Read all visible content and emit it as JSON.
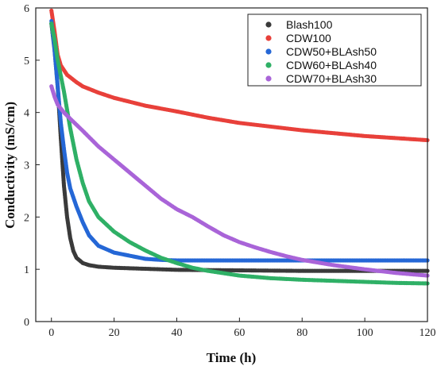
{
  "chart_data": {
    "type": "scatter",
    "title": "",
    "xlabel": "Time (h)",
    "ylabel": "Conductivity (mS/cm)",
    "xlim": [
      -5,
      120
    ],
    "ylim": [
      0,
      6
    ],
    "xticks": [
      0,
      20,
      40,
      60,
      80,
      100,
      120
    ],
    "yticks": [
      0,
      1,
      2,
      3,
      4,
      5,
      6
    ],
    "grid": false,
    "legend_position": "top-right",
    "series": [
      {
        "name": "Blash100",
        "color": "#3a3a3a",
        "points": [
          [
            0,
            5.7
          ],
          [
            1,
            5.2
          ],
          [
            2,
            4.5
          ],
          [
            3,
            3.5
          ],
          [
            4,
            2.6
          ],
          [
            5,
            2.0
          ],
          [
            6,
            1.6
          ],
          [
            7,
            1.35
          ],
          [
            8,
            1.22
          ],
          [
            10,
            1.12
          ],
          [
            12,
            1.08
          ],
          [
            15,
            1.05
          ],
          [
            20,
            1.03
          ],
          [
            30,
            1.01
          ],
          [
            40,
            0.99
          ],
          [
            60,
            0.98
          ],
          [
            80,
            0.97
          ],
          [
            100,
            0.97
          ],
          [
            120,
            0.97
          ]
        ]
      },
      {
        "name": "CDW100",
        "color": "#e8403a",
        "points": [
          [
            0,
            5.95
          ],
          [
            1,
            5.55
          ],
          [
            2,
            5.1
          ],
          [
            3,
            4.9
          ],
          [
            5,
            4.72
          ],
          [
            8,
            4.58
          ],
          [
            10,
            4.5
          ],
          [
            15,
            4.38
          ],
          [
            20,
            4.28
          ],
          [
            30,
            4.13
          ],
          [
            40,
            4.02
          ],
          [
            50,
            3.9
          ],
          [
            60,
            3.8
          ],
          [
            80,
            3.66
          ],
          [
            100,
            3.55
          ],
          [
            120,
            3.47
          ]
        ]
      },
      {
        "name": "CDW50+BLAsh50",
        "color": "#2567d6",
        "points": [
          [
            0,
            5.75
          ],
          [
            1,
            5.2
          ],
          [
            2,
            4.5
          ],
          [
            3,
            3.8
          ],
          [
            4,
            3.3
          ],
          [
            5,
            2.85
          ],
          [
            6,
            2.55
          ],
          [
            8,
            2.2
          ],
          [
            10,
            1.9
          ],
          [
            12,
            1.65
          ],
          [
            15,
            1.45
          ],
          [
            20,
            1.32
          ],
          [
            25,
            1.26
          ],
          [
            30,
            1.2
          ],
          [
            35,
            1.18
          ],
          [
            40,
            1.17
          ],
          [
            60,
            1.17
          ],
          [
            80,
            1.17
          ],
          [
            100,
            1.17
          ],
          [
            120,
            1.17
          ]
        ]
      },
      {
        "name": "CDW60+BLAsh40",
        "color": "#2fb066",
        "points": [
          [
            0,
            5.7
          ],
          [
            1,
            5.4
          ],
          [
            2,
            5.0
          ],
          [
            4,
            4.4
          ],
          [
            6,
            3.7
          ],
          [
            8,
            3.1
          ],
          [
            10,
            2.65
          ],
          [
            12,
            2.3
          ],
          [
            15,
            2.0
          ],
          [
            20,
            1.72
          ],
          [
            25,
            1.52
          ],
          [
            30,
            1.36
          ],
          [
            35,
            1.22
          ],
          [
            40,
            1.12
          ],
          [
            45,
            1.03
          ],
          [
            50,
            0.97
          ],
          [
            60,
            0.88
          ],
          [
            70,
            0.83
          ],
          [
            80,
            0.8
          ],
          [
            90,
            0.78
          ],
          [
            100,
            0.76
          ],
          [
            110,
            0.74
          ],
          [
            120,
            0.73
          ]
        ]
      },
      {
        "name": "CDW70+BLAsh30",
        "color": "#a964d8",
        "points": [
          [
            0,
            4.5
          ],
          [
            1,
            4.3
          ],
          [
            2,
            4.15
          ],
          [
            4,
            4.0
          ],
          [
            6,
            3.88
          ],
          [
            10,
            3.65
          ],
          [
            15,
            3.35
          ],
          [
            20,
            3.1
          ],
          [
            25,
            2.85
          ],
          [
            30,
            2.6
          ],
          [
            35,
            2.35
          ],
          [
            40,
            2.15
          ],
          [
            45,
            2.0
          ],
          [
            50,
            1.82
          ],
          [
            55,
            1.65
          ],
          [
            60,
            1.52
          ],
          [
            65,
            1.42
          ],
          [
            70,
            1.33
          ],
          [
            75,
            1.25
          ],
          [
            80,
            1.18
          ],
          [
            90,
            1.08
          ],
          [
            100,
            1.0
          ],
          [
            110,
            0.93
          ],
          [
            120,
            0.88
          ]
        ]
      }
    ]
  }
}
